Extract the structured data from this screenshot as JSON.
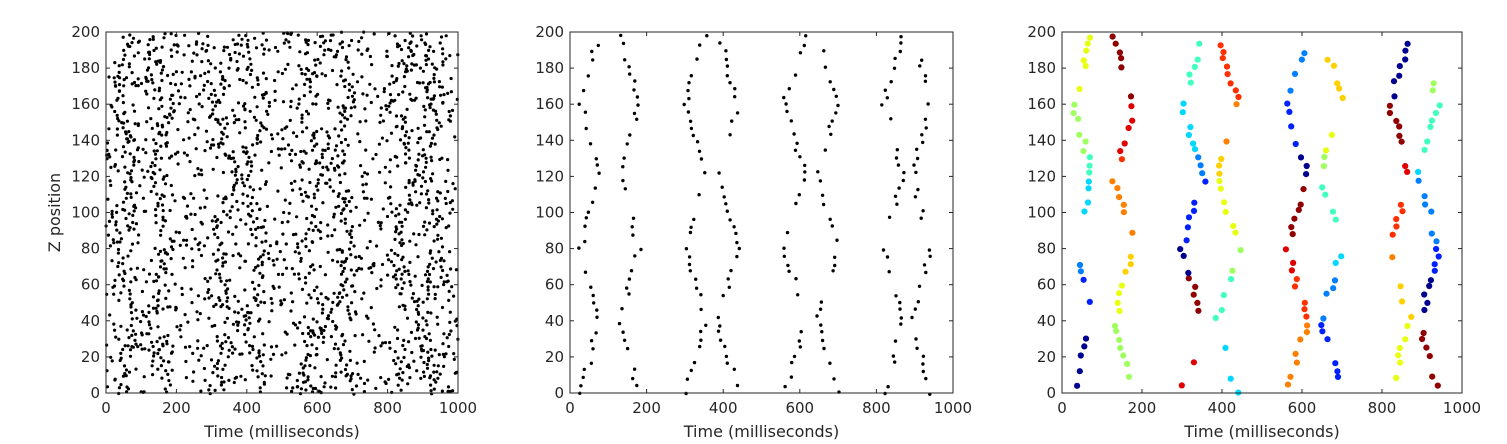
{
  "chart_data": [
    {
      "type": "scatter",
      "panel": "left",
      "xlabel": "Time (milliseconds)",
      "ylabel": "Z position",
      "xlim": [
        0,
        1000
      ],
      "ylim": [
        0,
        200
      ],
      "xticks": [
        0,
        200,
        400,
        600,
        800,
        1000
      ],
      "yticks": [
        0,
        20,
        40,
        60,
        80,
        100,
        120,
        140,
        160,
        180,
        200
      ],
      "grid": false,
      "color": "#000000",
      "trains": [
        {
          "t0": 30,
          "amp": 50,
          "slope": 1
        },
        {
          "t0": 180,
          "amp": 55,
          "slope": -1
        },
        {
          "t0": 305,
          "amp": 60,
          "slope": 1
        },
        {
          "t0": 450,
          "amp": 60,
          "slope": -1
        },
        {
          "t0": 560,
          "amp": 58,
          "slope": 1
        },
        {
          "t0": 700,
          "amp": 55,
          "slope": -1
        },
        {
          "t0": 820,
          "amp": 55,
          "slope": 1
        },
        {
          "t0": 940,
          "amp": 50,
          "slope": -1
        }
      ],
      "noise_density": 0.35
    },
    {
      "type": "scatter",
      "panel": "middle",
      "xlabel": "Time (milliseconds)",
      "ylabel": "",
      "xlim": [
        0,
        1000
      ],
      "ylim": [
        0,
        200
      ],
      "xticks": [
        0,
        200,
        400,
        600,
        800,
        1000
      ],
      "yticks": [
        0,
        20,
        40,
        60,
        80,
        100,
        120,
        140,
        160,
        180,
        200
      ],
      "grid": false,
      "color": "#000000",
      "trains": [
        {
          "t0": 30,
          "amp": 45,
          "slope": 1
        },
        {
          "t0": 180,
          "amp": 50,
          "slope": -1
        },
        {
          "t0": 300,
          "amp": 55,
          "slope": 1
        },
        {
          "t0": 440,
          "amp": 55,
          "slope": -1
        },
        {
          "t0": 560,
          "amp": 55,
          "slope": 1
        },
        {
          "t0": 700,
          "amp": 52,
          "slope": -1
        },
        {
          "t0": 820,
          "amp": 50,
          "slope": 1
        },
        {
          "t0": 940,
          "amp": 45,
          "slope": -1
        }
      ]
    },
    {
      "type": "scatter",
      "panel": "right",
      "xlabel": "Time (milliseconds)",
      "ylabel": "",
      "xlim": [
        0,
        1000
      ],
      "ylim": [
        0,
        200
      ],
      "xticks": [
        0,
        200,
        400,
        600,
        800,
        1000
      ],
      "yticks": [
        0,
        20,
        40,
        60,
        80,
        100,
        120,
        140,
        160,
        180,
        200
      ],
      "grid": false,
      "colormap": "jet",
      "palette": [
        "#00008f",
        "#0020ff",
        "#0080ff",
        "#00d8ff",
        "#40ffc0",
        "#a0ff60",
        "#e8ff10",
        "#ffd000",
        "#ff8000",
        "#ff3000",
        "#e00000",
        "#900000"
      ],
      "trains": [
        {
          "t0": 30,
          "amp": 45,
          "slope": 1
        },
        {
          "t0": 180,
          "amp": 50,
          "slope": -1
        },
        {
          "t0": 300,
          "amp": 55,
          "slope": 1
        },
        {
          "t0": 440,
          "amp": 55,
          "slope": -1
        },
        {
          "t0": 560,
          "amp": 55,
          "slope": 1
        },
        {
          "t0": 700,
          "amp": 52,
          "slope": -1
        },
        {
          "t0": 820,
          "amp": 50,
          "slope": 1
        },
        {
          "t0": 940,
          "amp": 45,
          "slope": -1
        }
      ]
    }
  ]
}
